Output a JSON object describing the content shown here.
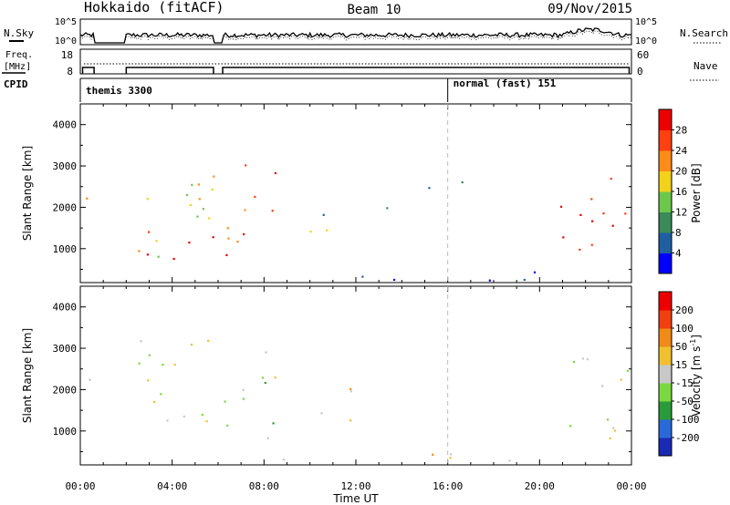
{
  "header": {
    "station": "Hokkaido (fitACF)",
    "beam": "Beam 10",
    "date": "09/Nov/2015"
  },
  "noise_panel": {
    "left_label": "N.Sky",
    "right_label": "N.Search",
    "left_ticks": [
      "10^5",
      "10^0"
    ],
    "right_ticks": [
      "10^5",
      "10^0"
    ]
  },
  "freq_panel": {
    "left_label_line1": "Freq.",
    "left_label_line2": "[MHz]",
    "right_label": "Nave",
    "left_ticks": [
      "18",
      "8"
    ],
    "right_ticks": [
      "60",
      "0"
    ]
  },
  "cpid_panel": {
    "label": "CPID",
    "modes": [
      {
        "label": "themis 3300",
        "start_hour": 0
      },
      {
        "label": "normal (fast) 151",
        "start_hour": 16
      }
    ]
  },
  "colors": {
    "power_scale": [
      "#0000ff",
      "#1f5fa0",
      "#3a8a5a",
      "#6cc84a",
      "#f2d21a",
      "#ff8c1a",
      "#ff4010",
      "#ee0000"
    ],
    "velocity_scale": [
      "#1a2ab4",
      "#2a6ad8",
      "#2a9a3a",
      "#7cd840",
      "#c8c8c8",
      "#f0c030",
      "#f08a18",
      "#f04010",
      "#ee0000"
    ]
  },
  "chart_data": [
    {
      "type": "heatmap",
      "name": "power",
      "ylabel": "Slant Range [km]",
      "ylim": [
        180,
        4500
      ],
      "yticks": [
        "1000",
        "2000",
        "3000",
        "4000"
      ],
      "xlim": [
        0,
        24
      ],
      "colorbar_label": "Power [dB]",
      "colorbar_ticks": [
        "28",
        "24",
        "20",
        "16",
        "12",
        "8",
        "4"
      ],
      "clim": [
        0,
        32
      ],
      "regions": [
        {
          "t0": 0.2,
          "t1": 0.6,
          "r0": 700,
          "r1": 2600,
          "level": 0.75
        },
        {
          "t0": 2.5,
          "t1": 5.8,
          "r0": 700,
          "r1": 3300,
          "level": 0.55
        },
        {
          "t0": 2.5,
          "t1": 5.8,
          "r0": 750,
          "r1": 1600,
          "level": 0.85
        },
        {
          "t0": 6.2,
          "t1": 8.5,
          "r0": 800,
          "r1": 3400,
          "level": 0.8
        },
        {
          "t0": 9.0,
          "t1": 12.5,
          "r0": 1100,
          "r1": 1500,
          "level": 0.75
        },
        {
          "t0": 10.5,
          "t1": 14.5,
          "r0": 1800,
          "r1": 2100,
          "level": 0.3
        },
        {
          "t0": 14.5,
          "t1": 17.5,
          "r0": 2300,
          "r1": 2700,
          "level": 0.25
        },
        {
          "t0": 8.5,
          "t1": 20.5,
          "r0": 250,
          "r1": 500,
          "level": 0.2
        },
        {
          "t0": 20.8,
          "t1": 23.8,
          "r0": 800,
          "r1": 3000,
          "level": 0.8
        }
      ]
    },
    {
      "type": "heatmap",
      "name": "velocity",
      "ylabel": "Slant Range [km]",
      "ylim": [
        180,
        4500
      ],
      "yticks": [
        "1000",
        "2000",
        "3000",
        "4000"
      ],
      "xlim": [
        0,
        24
      ],
      "xticks": [
        "00:00",
        "04:00",
        "08:00",
        "12:00",
        "16:00",
        "20:00",
        "00:00"
      ],
      "xlabel": "Time UT",
      "colorbar_label": "Velocity [m s",
      "colorbar_label_sup": "-1",
      "colorbar_label_end": "]",
      "colorbar_ticks": [
        "200",
        "100",
        "50",
        "15",
        "-15",
        "-50",
        "-100",
        "-200"
      ],
      "clim": [
        -250,
        250
      ],
      "regions": [
        {
          "t0": 0.2,
          "t1": 0.6,
          "r0": 700,
          "r1": 2600,
          "level": 0.5
        },
        {
          "t0": 2.5,
          "t1": 5.8,
          "r0": 700,
          "r1": 3300,
          "level": 0.5
        },
        {
          "t0": 6.2,
          "t1": 8.5,
          "r0": 800,
          "r1": 3400,
          "level": 0.5
        },
        {
          "t0": 9.0,
          "t1": 12.5,
          "r0": 1100,
          "r1": 1500,
          "level": 0.62
        },
        {
          "t0": 10.5,
          "t1": 14.5,
          "r0": 1800,
          "r1": 2100,
          "level": 0.62
        },
        {
          "t0": 8.5,
          "t1": 20.5,
          "r0": 250,
          "r1": 500,
          "level": 0.58
        },
        {
          "t0": 20.8,
          "t1": 23.8,
          "r0": 800,
          "r1": 3000,
          "level": 0.5
        }
      ]
    }
  ]
}
